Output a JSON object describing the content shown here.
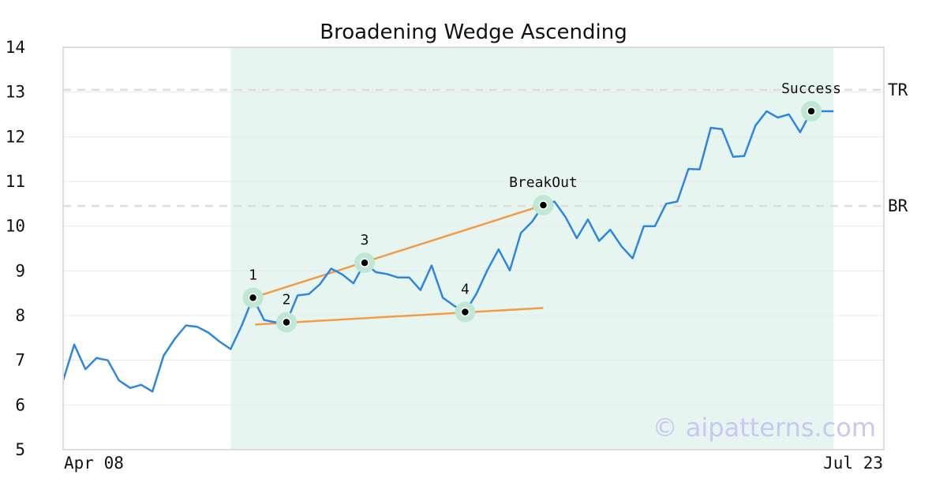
{
  "chart_data": {
    "type": "line",
    "title": "Broadening Wedge Ascending",
    "ylim": [
      5,
      14
    ],
    "yticks": [
      5,
      6,
      7,
      8,
      9,
      10,
      11,
      12,
      13,
      14
    ],
    "xtick_labels": [
      "Apr 08",
      "Jul 23"
    ],
    "grid": true,
    "colors": {
      "price": "#2e86de",
      "trendline": "#f39c46",
      "region": "#e6f5ef",
      "level": "#dddddd",
      "marker_halo": "#bfe8d4",
      "axis": "#dddddd"
    },
    "series": [
      {
        "values": [
          6.55,
          7.35,
          6.8,
          7.05,
          7.0,
          6.55,
          6.38,
          6.45,
          6.3,
          7.1,
          7.48,
          7.78,
          7.75,
          7.62,
          7.42,
          7.25,
          7.78,
          8.4,
          7.9,
          7.85,
          7.85,
          8.45,
          8.48,
          8.7,
          9.05,
          8.92,
          8.72,
          9.18,
          8.97,
          8.93,
          8.85,
          8.85,
          8.57,
          9.12,
          8.4,
          8.22,
          8.08,
          8.48,
          9.02,
          9.48,
          9.01,
          9.85,
          10.1,
          10.47,
          10.55,
          10.2,
          9.73,
          10.15,
          9.67,
          9.92,
          9.55,
          9.28,
          10.0,
          10.0,
          10.5,
          10.55,
          11.28,
          11.27,
          12.2,
          12.17,
          11.55,
          11.57,
          12.25,
          12.57,
          12.43,
          12.5,
          12.1,
          12.57,
          12.57,
          12.57
        ]
      }
    ],
    "pattern_region": {
      "x_start": 15,
      "x_end": 69
    },
    "levels": [
      {
        "label": "TR",
        "y": 13.05
      },
      {
        "label": "BR",
        "y": 10.45
      }
    ],
    "trendlines": [
      {
        "x1": 17,
        "y1": 8.4,
        "x2": 43,
        "y2": 10.47
      },
      {
        "x1": 17.2,
        "y1": 7.8,
        "x2": 43,
        "y2": 8.17
      }
    ],
    "annotations": [
      {
        "label": "1",
        "x": 17,
        "y": 8.4
      },
      {
        "label": "2",
        "x": 20,
        "y": 7.85
      },
      {
        "label": "3",
        "x": 27,
        "y": 9.18
      },
      {
        "label": "4",
        "x": 36,
        "y": 8.08
      },
      {
        "label": "BreakOut",
        "x": 43,
        "y": 10.47
      },
      {
        "label": "Success",
        "x": 67,
        "y": 12.57
      }
    ],
    "watermark": "© aipatterns.com"
  }
}
